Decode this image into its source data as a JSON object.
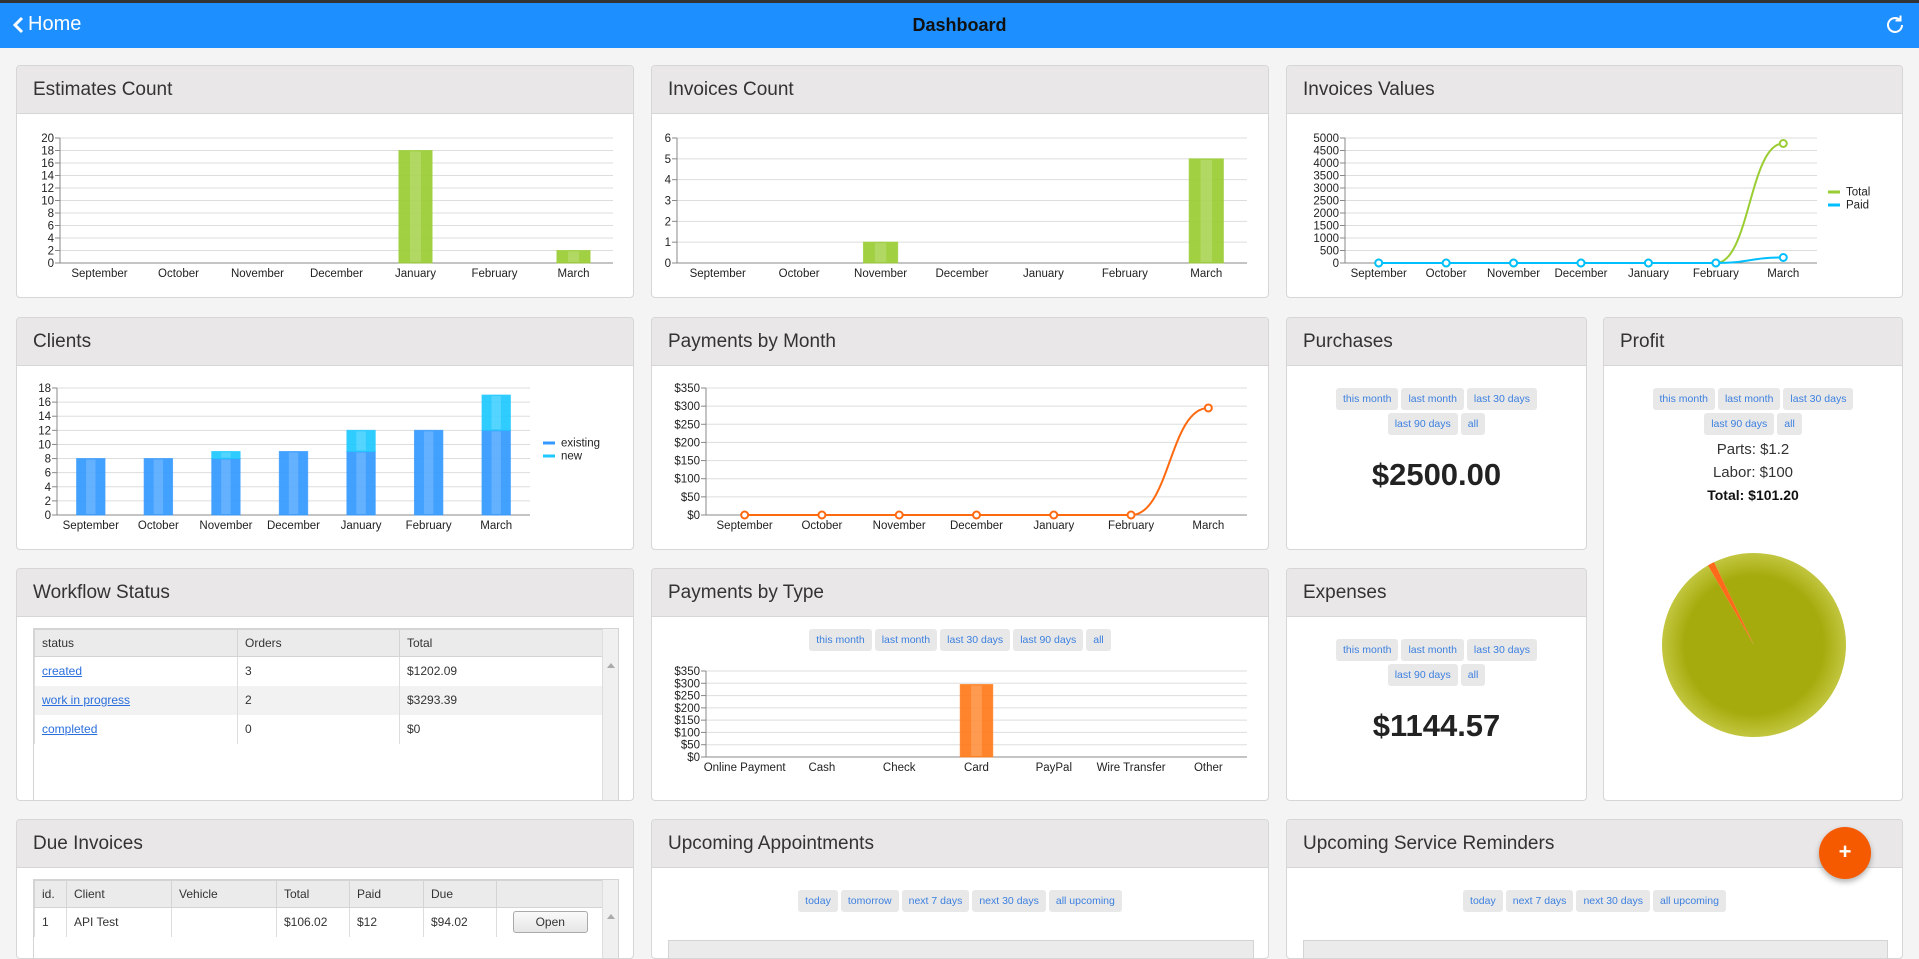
{
  "header": {
    "back_label": "Home",
    "title": "Dashboard"
  },
  "filters": {
    "period": [
      "this month",
      "last month",
      "last 30 days",
      "last 90 days",
      "all"
    ],
    "appointments": [
      "today",
      "tomorrow",
      "next 7 days",
      "next 30 days",
      "all upcoming"
    ],
    "reminders": [
      "today",
      "next 7 days",
      "next 30 days",
      "all upcoming"
    ]
  },
  "cards": {
    "estimates": "Estimates Count",
    "invoices_count": "Invoices Count",
    "invoices_values": "Invoices Values",
    "clients": "Clients",
    "payments_month": "Payments by Month",
    "purchases": "Purchases",
    "profit": "Profit",
    "workflow": "Workflow Status",
    "payments_type": "Payments by Type",
    "expenses": "Expenses",
    "due_invoices": "Due Invoices",
    "appointments": "Upcoming Appointments",
    "reminders": "Upcoming Service Reminders"
  },
  "purchases": {
    "value": "$2500.00"
  },
  "expenses": {
    "value": "$1144.57"
  },
  "profit": {
    "parts": "Parts: $1.2",
    "labor": "Labor: $100",
    "total": "Total: $101.20",
    "pie": [
      {
        "name": "Labor",
        "value": 100,
        "color": "#a5ab0c"
      },
      {
        "name": "Parts",
        "value": 1.2,
        "color": "#ff6a1a"
      }
    ]
  },
  "workflow": {
    "columns": [
      "status",
      "Orders",
      "Total"
    ],
    "rows": [
      [
        "created",
        "3",
        "$1202.09"
      ],
      [
        "work in progress",
        "2",
        "$3293.39"
      ],
      [
        "completed",
        "0",
        "$0"
      ]
    ]
  },
  "due_invoices": {
    "columns": [
      "id.",
      "Client",
      "Vehicle",
      "Total",
      "Paid",
      "Due",
      ""
    ],
    "rows": [
      [
        "1",
        "API Test",
        "",
        "$106.02",
        "$12",
        "$94.02",
        "Open"
      ]
    ]
  },
  "fab": {
    "label": "+"
  },
  "chart_data": {
    "estimates": {
      "type": "bar",
      "categories": [
        "September",
        "October",
        "November",
        "December",
        "January",
        "February",
        "March"
      ],
      "series": [
        {
          "values": [
            0,
            0,
            0,
            0,
            18,
            0,
            2
          ],
          "color": "#9acd32"
        }
      ],
      "ylim": [
        0,
        20
      ],
      "ystep": 2,
      "prefix": "",
      "grid": true
    },
    "invoices_count": {
      "type": "bar",
      "categories": [
        "September",
        "October",
        "November",
        "December",
        "January",
        "February",
        "March"
      ],
      "series": [
        {
          "values": [
            0,
            0,
            1,
            0,
            0,
            0,
            5
          ],
          "color": "#9acd32"
        }
      ],
      "ylim": [
        0,
        6
      ],
      "ystep": 1,
      "prefix": "",
      "grid": true
    },
    "invoices_values": {
      "type": "line",
      "categories": [
        "September",
        "October",
        "November",
        "December",
        "January",
        "February",
        "March"
      ],
      "series": [
        {
          "name": "Total",
          "values": [
            0,
            0,
            0,
            0,
            0,
            0,
            4780
          ],
          "color": "#9acd32"
        },
        {
          "name": "Paid",
          "values": [
            0,
            0,
            0,
            0,
            0,
            0,
            220
          ],
          "color": "#00bfff"
        }
      ],
      "ylim": [
        0,
        5000
      ],
      "ystep": 500,
      "prefix": "",
      "grid": true,
      "legend": "right"
    },
    "clients": {
      "type": "stacked-bar",
      "categories": [
        "September",
        "October",
        "November",
        "December",
        "January",
        "February",
        "March"
      ],
      "series": [
        {
          "name": "existing",
          "values": [
            8,
            8,
            8,
            9,
            9,
            12,
            12
          ],
          "color": "#3399ff"
        },
        {
          "name": "new",
          "values": [
            0,
            0,
            1,
            0,
            3,
            0,
            5
          ],
          "color": "#1ec8ff"
        }
      ],
      "ylim": [
        0,
        18
      ],
      "ystep": 2,
      "prefix": "",
      "grid": true,
      "legend": "right"
    },
    "payments_month": {
      "type": "line",
      "categories": [
        "September",
        "October",
        "November",
        "December",
        "January",
        "February",
        "March"
      ],
      "series": [
        {
          "values": [
            0,
            0,
            0,
            0,
            0,
            0,
            295
          ],
          "color": "#ff6a10"
        }
      ],
      "ylim": [
        0,
        350
      ],
      "ystep": 50,
      "prefix": "$",
      "grid": true
    },
    "payments_type": {
      "type": "bar",
      "categories": [
        "Online Payment",
        "Cash",
        "Check",
        "Card",
        "PayPal",
        "Wire Transfer",
        "Other"
      ],
      "series": [
        {
          "values": [
            0,
            0,
            0,
            295,
            0,
            0,
            0
          ],
          "color": "#ff7a1a"
        }
      ],
      "ylim": [
        0,
        350
      ],
      "ystep": 50,
      "prefix": "$",
      "grid": true
    }
  }
}
